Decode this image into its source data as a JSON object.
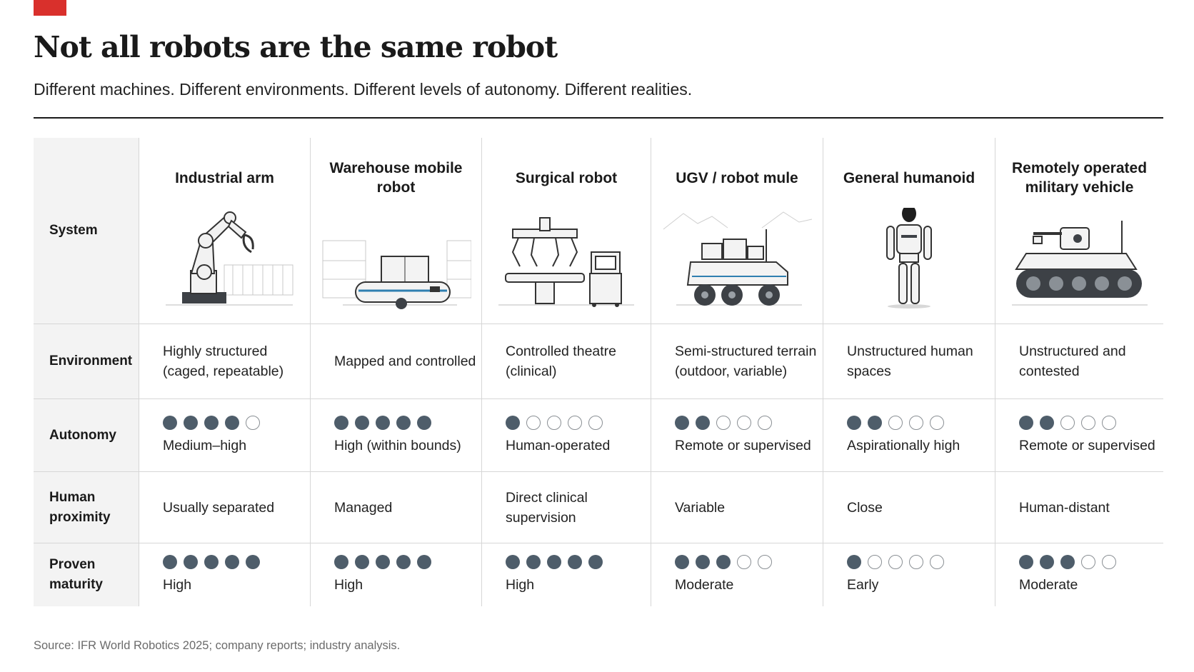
{
  "title": "Not all robots are the same robot",
  "subtitle": "Different machines. Different environments. Different levels of autonomy. Different realities.",
  "source": "Source: IFR World Robotics 2025; company reports; industry analysis.",
  "colors": {
    "accent": "#d9302c",
    "dot_filled": "#4e5d6a",
    "rule": "#1a1a1a"
  },
  "row_labels": {
    "system": "System",
    "environment": "Environment",
    "autonomy": "Autonomy",
    "human_proximity": "Human proximity",
    "proven_maturity": "Proven maturity"
  },
  "systems": [
    {
      "name": "Industrial arm",
      "icon": "industrial-arm-icon",
      "environment": "Highly structured (caged, repeatable)",
      "autonomy_level": 4,
      "autonomy_label": "Medium–high",
      "human_proximity": "Usually separated",
      "maturity_level": 5,
      "maturity_label": "High"
    },
    {
      "name": "Warehouse mobile robot",
      "icon": "warehouse-robot-icon",
      "environment": "Mapped and controlled",
      "autonomy_level": 5,
      "autonomy_label": "High (within bounds)",
      "human_proximity": "Managed",
      "maturity_level": 5,
      "maturity_label": "High"
    },
    {
      "name": "Surgical robot",
      "icon": "surgical-robot-icon",
      "environment": "Controlled theatre (clinical)",
      "autonomy_level": 1,
      "autonomy_label": "Human-operated",
      "human_proximity": "Direct clinical supervision",
      "maturity_level": 5,
      "maturity_label": "High"
    },
    {
      "name": "UGV / robot mule",
      "icon": "ugv-icon",
      "environment": "Semi-structured terrain (outdoor, variable)",
      "autonomy_level": 2,
      "autonomy_label": "Remote or supervised",
      "human_proximity": "Variable",
      "maturity_level": 3,
      "maturity_label": "Moderate"
    },
    {
      "name": "General humanoid",
      "icon": "humanoid-icon",
      "environment": "Unstructured human spaces",
      "autonomy_level": 2,
      "autonomy_label": "Aspirationally high",
      "human_proximity": "Close",
      "maturity_level": 1,
      "maturity_label": "Early"
    },
    {
      "name": "Remotely operated military vehicle",
      "icon": "military-vehicle-icon",
      "environment": "Unstructured and contested",
      "autonomy_level": 2,
      "autonomy_label": "Remote or supervised",
      "human_proximity": "Human-distant",
      "maturity_level": 3,
      "maturity_label": "Moderate"
    }
  ],
  "chart_data": {
    "type": "table",
    "title": "Not all robots are the same robot",
    "subtitle": "Different machines. Different environments. Different levels of autonomy. Different realities.",
    "columns": [
      "Industrial arm",
      "Warehouse mobile robot",
      "Surgical robot",
      "UGV / robot mule",
      "General humanoid",
      "Remotely operated military vehicle"
    ],
    "rows": [
      "System",
      "Environment",
      "Autonomy",
      "Human proximity",
      "Proven maturity"
    ],
    "scale_max": 5,
    "autonomy": [
      4,
      5,
      1,
      2,
      2,
      2
    ],
    "maturity": [
      5,
      5,
      5,
      3,
      1,
      3
    ]
  }
}
